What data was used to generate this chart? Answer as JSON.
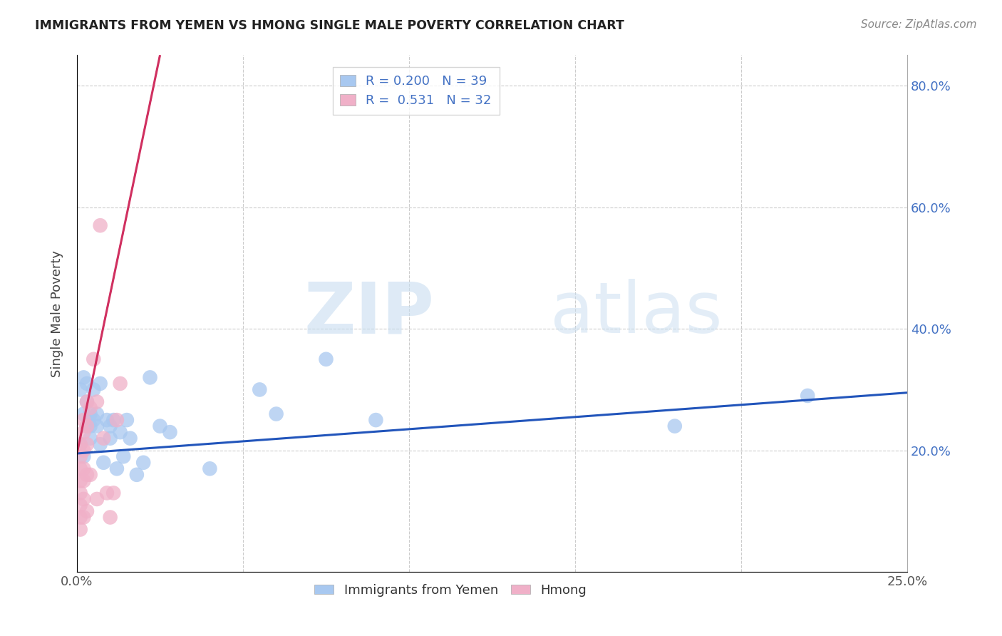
{
  "title": "IMMIGRANTS FROM YEMEN VS HMONG SINGLE MALE POVERTY CORRELATION CHART",
  "source": "Source: ZipAtlas.com",
  "ylabel": "Single Male Poverty",
  "xlim": [
    0.0,
    0.25
  ],
  "ylim": [
    0.0,
    0.85
  ],
  "xticks": [
    0.0,
    0.05,
    0.1,
    0.15,
    0.2,
    0.25
  ],
  "yticks": [
    0.0,
    0.2,
    0.4,
    0.6,
    0.8
  ],
  "ytick_labels_right": [
    "",
    "20.0%",
    "40.0%",
    "60.0%",
    "80.0%"
  ],
  "xtick_labels": [
    "0.0%",
    "",
    "",
    "",
    "",
    "25.0%"
  ],
  "blue_R": 0.2,
  "blue_N": 39,
  "pink_R": 0.531,
  "pink_N": 32,
  "legend1_label": "Immigrants from Yemen",
  "legend2_label": "Hmong",
  "blue_color": "#a8c8f0",
  "pink_color": "#f0b0c8",
  "blue_line_color": "#2255bb",
  "pink_line_color": "#d03060",
  "background_color": "#ffffff",
  "blue_points_x": [
    0.001,
    0.001,
    0.002,
    0.002,
    0.002,
    0.003,
    0.003,
    0.003,
    0.004,
    0.004,
    0.004,
    0.005,
    0.005,
    0.006,
    0.006,
    0.007,
    0.007,
    0.008,
    0.009,
    0.01,
    0.01,
    0.011,
    0.012,
    0.013,
    0.014,
    0.015,
    0.016,
    0.018,
    0.02,
    0.022,
    0.025,
    0.028,
    0.04,
    0.055,
    0.06,
    0.075,
    0.09,
    0.18,
    0.22
  ],
  "blue_points_y": [
    0.21,
    0.3,
    0.32,
    0.26,
    0.19,
    0.31,
    0.24,
    0.28,
    0.26,
    0.24,
    0.22,
    0.3,
    0.25,
    0.26,
    0.24,
    0.31,
    0.21,
    0.18,
    0.25,
    0.24,
    0.22,
    0.25,
    0.17,
    0.23,
    0.19,
    0.25,
    0.22,
    0.16,
    0.18,
    0.32,
    0.24,
    0.23,
    0.17,
    0.3,
    0.26,
    0.35,
    0.25,
    0.24,
    0.29
  ],
  "pink_points_x": [
    0.001,
    0.001,
    0.001,
    0.001,
    0.001,
    0.001,
    0.001,
    0.001,
    0.002,
    0.002,
    0.002,
    0.002,
    0.002,
    0.002,
    0.002,
    0.003,
    0.003,
    0.003,
    0.003,
    0.003,
    0.004,
    0.004,
    0.005,
    0.006,
    0.006,
    0.007,
    0.008,
    0.009,
    0.01,
    0.011,
    0.012,
    0.013
  ],
  "pink_points_y": [
    0.21,
    0.19,
    0.17,
    0.15,
    0.13,
    0.11,
    0.09,
    0.07,
    0.25,
    0.23,
    0.2,
    0.17,
    0.15,
    0.12,
    0.09,
    0.28,
    0.24,
    0.21,
    0.16,
    0.1,
    0.27,
    0.16,
    0.35,
    0.28,
    0.12,
    0.57,
    0.22,
    0.13,
    0.09,
    0.13,
    0.25,
    0.31
  ],
  "blue_line_x0": 0.0,
  "blue_line_y0": 0.195,
  "blue_line_x1": 0.25,
  "blue_line_y1": 0.295,
  "pink_line_x0": 0.0,
  "pink_line_y0": 0.195,
  "pink_line_x1": 0.025,
  "pink_line_y1": 0.85
}
